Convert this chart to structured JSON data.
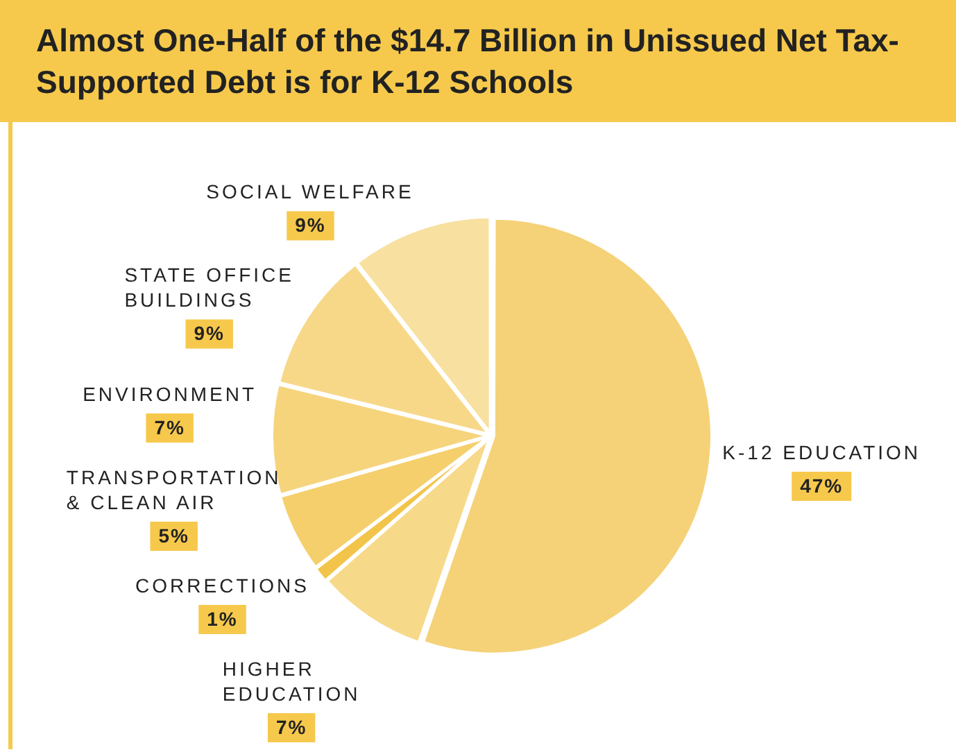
{
  "chart_data": {
    "type": "pie",
    "title": "Almost One-Half of the $14.7 Billion in Unissued Net Tax-Supported Debt is for K-12 Schools",
    "categories": [
      "K-12 EDUCATION",
      "HIGHER EDUCATION",
      "CORRECTIONS",
      "TRANSPORTATION & CLEAN AIR",
      "ENVIRONMENT",
      "STATE OFFICE BUILDINGS",
      "SOCIAL WELFARE"
    ],
    "values": [
      47,
      7,
      1,
      5,
      7,
      9,
      9
    ],
    "value_labels": [
      "47%",
      "7%",
      "1%",
      "5%",
      "7%",
      "9%",
      "9%"
    ],
    "colors": [
      "#f5d278",
      "#f7d98a",
      "#f2c44a",
      "#f5cf6c",
      "#f6d47c",
      "#f7d888",
      "#f8e0a0"
    ],
    "legend": false
  }
}
